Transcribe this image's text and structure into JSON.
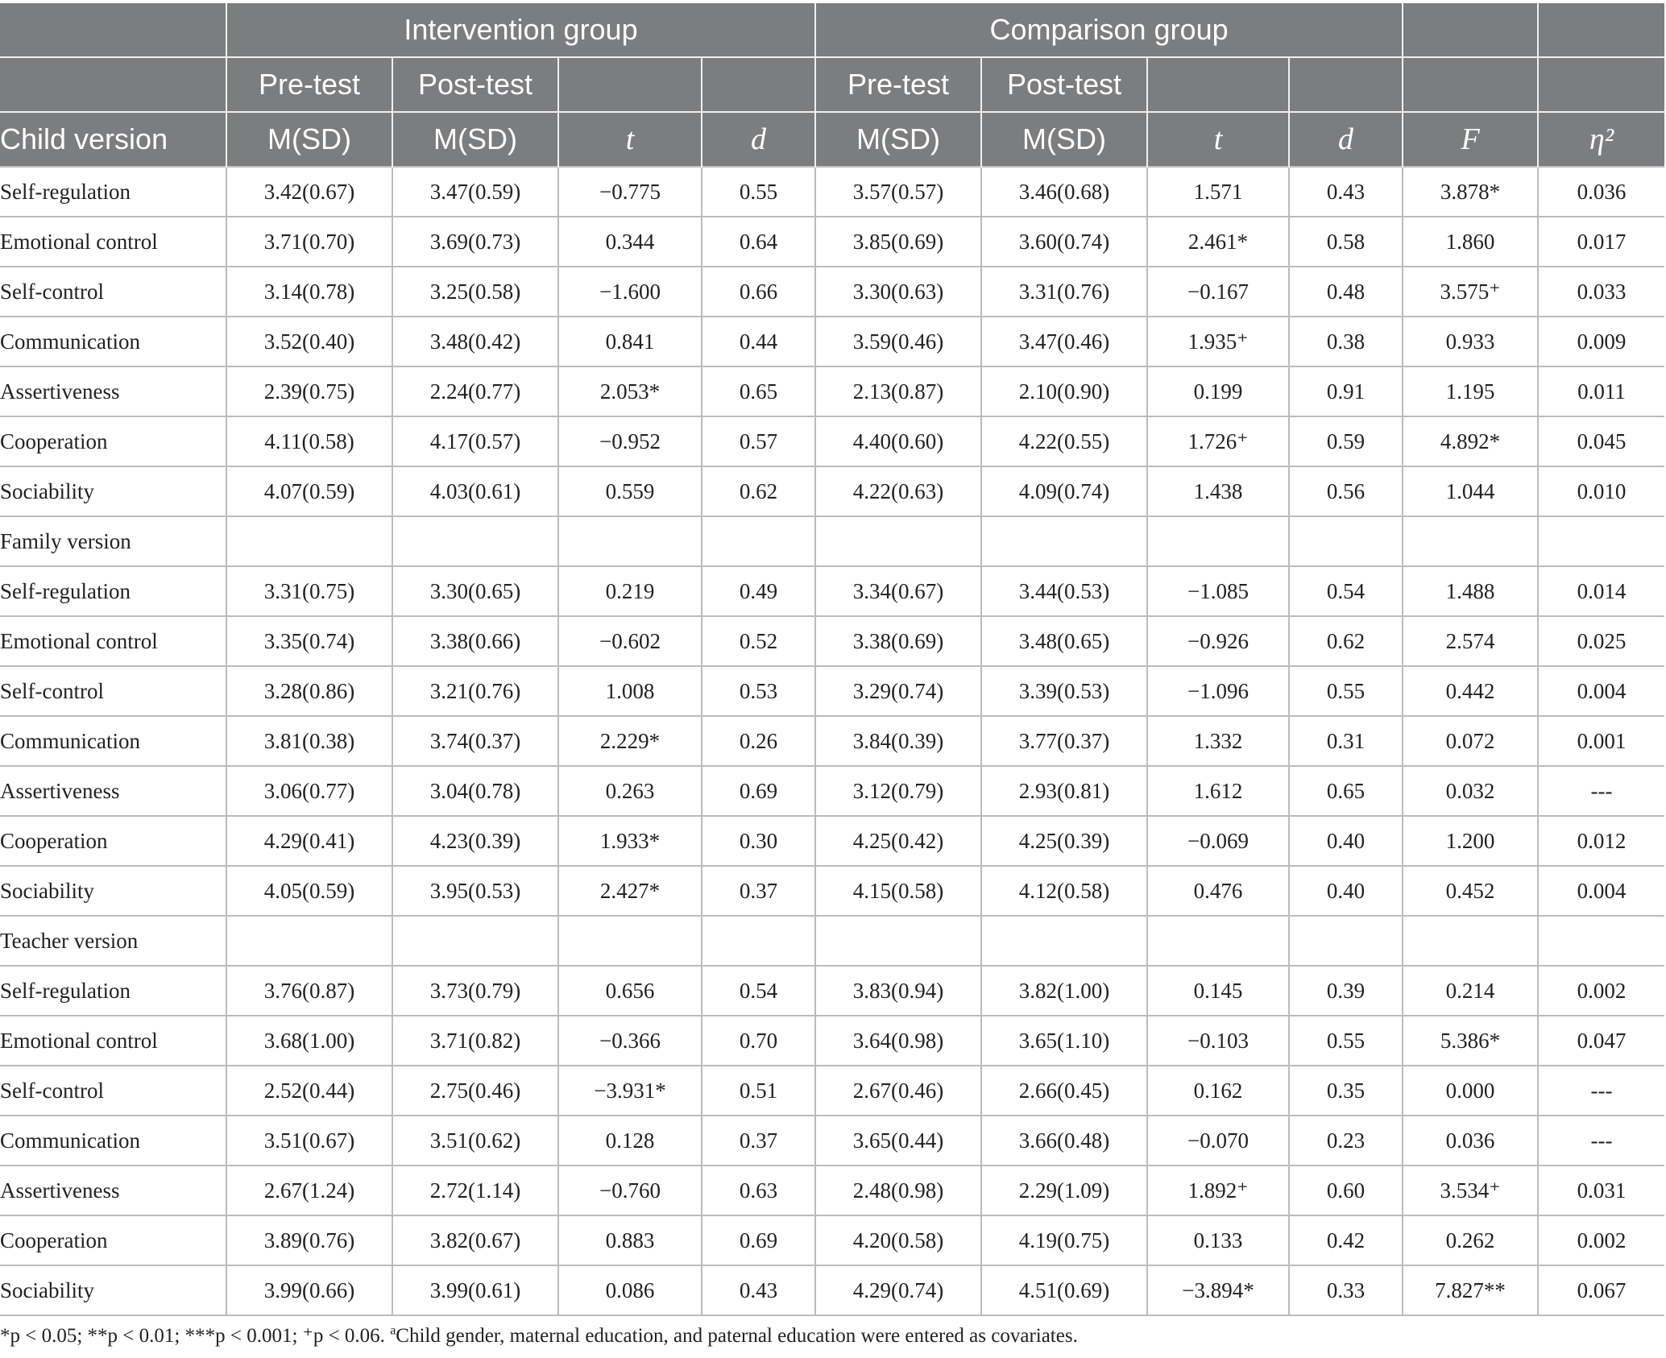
{
  "header": {
    "intervention_group": "Intervention group",
    "comparison_group": "Comparison group",
    "pre_test": "Pre-test",
    "post_test": "Post-test",
    "first_col": "Child version",
    "msd": "M(SD)",
    "t": "t",
    "d": "d",
    "F": "F",
    "eta": "η²"
  },
  "sections": [
    {
      "label": "Child version",
      "rows": [
        [
          "Self-regulation",
          "3.42(0.67)",
          "3.47(0.59)",
          "−0.775",
          "0.55",
          "3.57(0.57)",
          "3.46(0.68)",
          "1.571",
          "0.43",
          "3.878*",
          "0.036"
        ],
        [
          "Emotional control",
          "3.71(0.70)",
          "3.69(0.73)",
          "0.344",
          "0.64",
          "3.85(0.69)",
          "3.60(0.74)",
          "2.461*",
          "0.58",
          "1.860",
          "0.017"
        ],
        [
          "Self-control",
          "3.14(0.78)",
          "3.25(0.58)",
          "−1.600",
          "0.66",
          "3.30(0.63)",
          "3.31(0.76)",
          "−0.167",
          "0.48",
          "3.575⁺",
          "0.033"
        ],
        [
          "Communication",
          "3.52(0.40)",
          "3.48(0.42)",
          "0.841",
          "0.44",
          "3.59(0.46)",
          "3.47(0.46)",
          "1.935⁺",
          "0.38",
          "0.933",
          "0.009"
        ],
        [
          "Assertiveness",
          "2.39(0.75)",
          "2.24(0.77)",
          "2.053*",
          "0.65",
          "2.13(0.87)",
          "2.10(0.90)",
          "0.199",
          "0.91",
          "1.195",
          "0.011"
        ],
        [
          "Cooperation",
          "4.11(0.58)",
          "4.17(0.57)",
          "−0.952",
          "0.57",
          "4.40(0.60)",
          "4.22(0.55)",
          "1.726⁺",
          "0.59",
          "4.892*",
          "0.045"
        ],
        [
          "Sociability",
          "4.07(0.59)",
          "4.03(0.61)",
          "0.559",
          "0.62",
          "4.22(0.63)",
          "4.09(0.74)",
          "1.438",
          "0.56",
          "1.044",
          "0.010"
        ]
      ]
    },
    {
      "label": "Family version",
      "rows": [
        [
          "Self-regulation",
          "3.31(0.75)",
          "3.30(0.65)",
          "0.219",
          "0.49",
          "3.34(0.67)",
          "3.44(0.53)",
          "−1.085",
          "0.54",
          "1.488",
          "0.014"
        ],
        [
          "Emotional control",
          "3.35(0.74)",
          "3.38(0.66)",
          "−0.602",
          "0.52",
          "3.38(0.69)",
          "3.48(0.65)",
          "−0.926",
          "0.62",
          "2.574",
          "0.025"
        ],
        [
          "Self-control",
          "3.28(0.86)",
          "3.21(0.76)",
          "1.008",
          "0.53",
          "3.29(0.74)",
          "3.39(0.53)",
          "−1.096",
          "0.55",
          "0.442",
          "0.004"
        ],
        [
          "Communication",
          "3.81(0.38)",
          "3.74(0.37)",
          "2.229*",
          "0.26",
          "3.84(0.39)",
          "3.77(0.37)",
          "1.332",
          "0.31",
          "0.072",
          "0.001"
        ],
        [
          "Assertiveness",
          "3.06(0.77)",
          "3.04(0.78)",
          "0.263",
          "0.69",
          "3.12(0.79)",
          "2.93(0.81)",
          "1.612",
          "0.65",
          "0.032",
          "---"
        ],
        [
          "Cooperation",
          "4.29(0.41)",
          "4.23(0.39)",
          "1.933*",
          "0.30",
          "4.25(0.42)",
          "4.25(0.39)",
          "−0.069",
          "0.40",
          "1.200",
          "0.012"
        ],
        [
          "Sociability",
          "4.05(0.59)",
          "3.95(0.53)",
          "2.427*",
          "0.37",
          "4.15(0.58)",
          "4.12(0.58)",
          "0.476",
          "0.40",
          "0.452",
          "0.004"
        ]
      ]
    },
    {
      "label": "Teacher version",
      "rows": [
        [
          "Self-regulation",
          "3.76(0.87)",
          "3.73(0.79)",
          "0.656",
          "0.54",
          "3.83(0.94)",
          "3.82(1.00)",
          "0.145",
          "0.39",
          "0.214",
          "0.002"
        ],
        [
          "Emotional control",
          "3.68(1.00)",
          "3.71(0.82)",
          "−0.366",
          "0.70",
          "3.64(0.98)",
          "3.65(1.10)",
          "−0.103",
          "0.55",
          "5.386*",
          "0.047"
        ],
        [
          "Self-control",
          "2.52(0.44)",
          "2.75(0.46)",
          "−3.931*",
          "0.51",
          "2.67(0.46)",
          "2.66(0.45)",
          "0.162",
          "0.35",
          "0.000",
          "---"
        ],
        [
          "Communication",
          "3.51(0.67)",
          "3.51(0.62)",
          "0.128",
          "0.37",
          "3.65(0.44)",
          "3.66(0.48)",
          "−0.070",
          "0.23",
          "0.036",
          "---"
        ],
        [
          "Assertiveness",
          "2.67(1.24)",
          "2.72(1.14)",
          "−0.760",
          "0.63",
          "2.48(0.98)",
          "2.29(1.09)",
          "1.892⁺",
          "0.60",
          "3.534⁺",
          "0.031"
        ],
        [
          "Cooperation",
          "3.89(0.76)",
          "3.82(0.67)",
          "0.883",
          "0.69",
          "4.20(0.58)",
          "4.19(0.75)",
          "0.133",
          "0.42",
          "0.262",
          "0.002"
        ],
        [
          "Sociability",
          "3.99(0.66)",
          "3.99(0.61)",
          "0.086",
          "0.43",
          "4.29(0.74)",
          "4.51(0.69)",
          "−3.894*",
          "0.33",
          "7.827**",
          "0.067"
        ]
      ]
    }
  ],
  "footnote": {
    "p1": "*p < 0.05; **p < 0.01; ***p < 0.001; ⁺p < 0.06. ",
    "sup": "a",
    "p2": "Child gender, maternal education, and paternal education were entered as covariates."
  }
}
